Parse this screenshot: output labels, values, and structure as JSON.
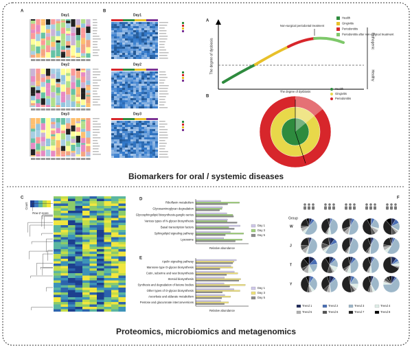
{
  "panel_a": {
    "label": "A",
    "days": [
      "Day1",
      "Day2",
      "Day3"
    ]
  },
  "panel_b": {
    "label": "B",
    "days": [
      "Day1",
      "Day2",
      "Day3"
    ]
  },
  "dysbiosis_curve": {
    "label": "A",
    "y_axis": "The degree of dysbiosis",
    "right_axis_top": "Pathogenic",
    "right_axis_bottom": "Healthy",
    "annotation": "Non-surgical periodontal treatment",
    "legend": [
      {
        "name": "Health",
        "color": "#2e8b3e"
      },
      {
        "name": "Gingivitis",
        "color": "#e8c02a"
      },
      {
        "name": "Periodontitis",
        "color": "#d7262b"
      },
      {
        "name": "Periodontitis after non-surgical treatment",
        "color": "#7ec86a"
      }
    ]
  },
  "dysbiosis_sphere": {
    "label": "B",
    "title": "The degree of dysbiosis",
    "legend": [
      {
        "name": "Health",
        "color": "#2e8b3e"
      },
      {
        "name": "Gingivitis",
        "color": "#e8d84a"
      },
      {
        "name": "Periodontitis",
        "color": "#d7262b"
      }
    ]
  },
  "caption_top": "Biomarkers for oral / systemic diseases",
  "heatmap": {
    "label": "C",
    "legend_title": "Count",
    "legend_axis": "Row Z score"
  },
  "kegg_d": {
    "label": "D",
    "axis_label": "Relative abundance",
    "pathways": [
      "Riboflavin metabolism",
      "Glycosaminoglycan degradation",
      "Glycosphingolipid biosynthesis-ganglio series",
      "Various types of N-glycan biosynthesis",
      "Basal transcription factors",
      "Sphingolipid signaling pathway",
      "Lysosome"
    ],
    "legend": [
      {
        "name": "Day 1",
        "color": "#cfc8ea"
      },
      {
        "name": "Day 3",
        "color": "#9fd07a"
      },
      {
        "name": "Day 5",
        "color": "#8c8c8c"
      }
    ]
  },
  "kegg_e": {
    "label": "E",
    "axis_label": "Relative abundance",
    "pathways": [
      "Apelin signaling pathway",
      "Mannose type O-glycan biosynthesis",
      "Cutin, suberine and wax biosynthesis",
      "Steroid biosynthesis",
      "Synthesis and degradation of ketone bodies",
      "Other types of O-glycan biosynthesis",
      "Ascorbate and aldarate metabolism",
      "Pentose and glucuronate interconversions"
    ],
    "legend": [
      {
        "name": "Day 1",
        "color": "#cfc8ea"
      },
      {
        "name": "Day 3",
        "color": "#f0e27a"
      },
      {
        "name": "Day 5",
        "color": "#8c8c8c"
      }
    ]
  },
  "pies": {
    "label": "F",
    "group_label": "Group",
    "rows": [
      "W",
      "J",
      "T",
      "Y"
    ],
    "trends": [
      {
        "name": "Trend 1",
        "color": "#1f2a5a"
      },
      {
        "name": "Trend 2",
        "color": "#4a6fb5"
      },
      {
        "name": "Trend 3",
        "color": "#9db7c9"
      },
      {
        "name": "Trend 4",
        "color": "#dfeee8"
      },
      {
        "name": "Trend 5",
        "color": "#b0b0b0"
      },
      {
        "name": "Trend 6",
        "color": "#555555"
      },
      {
        "name": "Trend 7",
        "color": "#222222"
      },
      {
        "name": "Trend 8",
        "color": "#000000"
      }
    ]
  },
  "caption_bottom": "Proteomics, microbiomics and metagenomics"
}
